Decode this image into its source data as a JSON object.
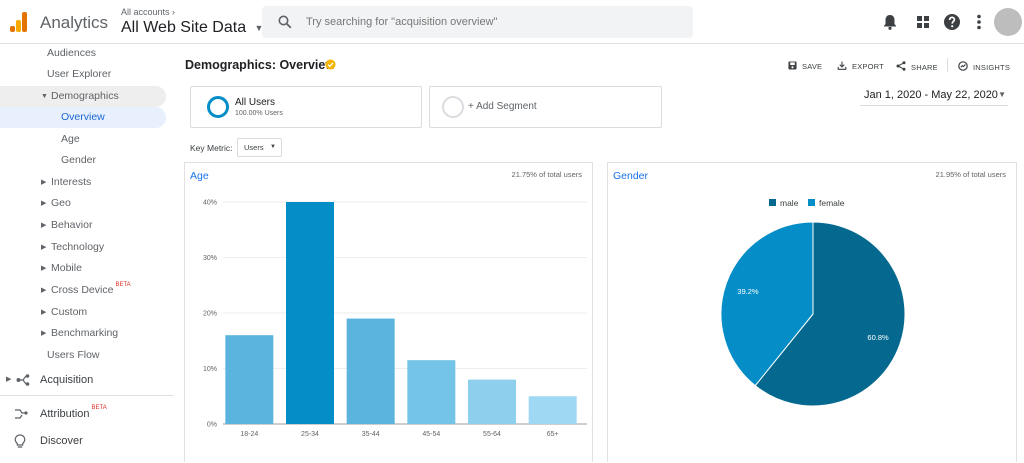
{
  "header": {
    "app_name": "Analytics",
    "account_small": "All accounts",
    "account_chevron": "›",
    "property": "All Web Site Data",
    "property_caret": "▼",
    "search_placeholder": "Try searching for \"acquisition overview\"",
    "icons": [
      "bell-icon",
      "apps-grid-icon",
      "help-icon",
      "more-vert-icon",
      "avatar"
    ]
  },
  "sidebar": {
    "items": [
      {
        "label": "Audiences",
        "arrow": ""
      },
      {
        "label": "User Explorer",
        "arrow": ""
      },
      {
        "label": "Demographics",
        "arrow": "▼"
      },
      {
        "label": "Overview",
        "arrow": ""
      },
      {
        "label": "Age",
        "arrow": ""
      },
      {
        "label": "Gender",
        "arrow": ""
      },
      {
        "label": "Interests",
        "arrow": "▶"
      },
      {
        "label": "Geo",
        "arrow": "▶"
      },
      {
        "label": "Behavior",
        "arrow": "▶"
      },
      {
        "label": "Technology",
        "arrow": "▶"
      },
      {
        "label": "Mobile",
        "arrow": "▶"
      },
      {
        "label": "Cross Device",
        "arrow": "▶",
        "badge": "BETA"
      },
      {
        "label": "Custom",
        "arrow": "▶"
      },
      {
        "label": "Benchmarking",
        "arrow": "▶"
      },
      {
        "label": "Users Flow",
        "arrow": ""
      }
    ],
    "acquisition": "Acquisition",
    "attribution": "Attribution",
    "attribution_badge": "BETA",
    "discover": "Discover"
  },
  "page": {
    "title": "Demographics: Overview",
    "actions": {
      "save": "SAVE",
      "export": "EXPORT",
      "share": "SHARE",
      "insights": "INSIGHTS"
    },
    "segments": {
      "all_users": "All Users",
      "all_users_sub": "100.00% Users",
      "add_segment": "+ Add Segment"
    },
    "date_range": "Jan 1, 2020 - May 22, 2020",
    "date_caret": "▼",
    "key_metric_label": "Key Metric:",
    "key_metric_value": "Users",
    "key_metric_caret": "▼"
  },
  "colors": {
    "age_bars": [
      "#5ab4dd",
      "#058dc7",
      "#5ab4dd",
      "#73c4e6",
      "#8dcfed",
      "#9fd8f2"
    ],
    "male": "#05698f",
    "female": "#058dc7",
    "accent_blue": "#1a73e8",
    "verified": "#f4b400"
  },
  "age_panel": {
    "title": "Age",
    "pct_of_total": "21.75% of total users"
  },
  "gender_panel": {
    "title": "Gender",
    "pct_of_total": "21.95% of total users"
  },
  "chart_data": [
    {
      "type": "bar",
      "title": "Age",
      "categories": [
        "18-24",
        "25-34",
        "35-44",
        "45-54",
        "55-64",
        "65+"
      ],
      "values": [
        16,
        40,
        19,
        11.5,
        8,
        5
      ],
      "yticks": [
        "0%",
        "10%",
        "20%",
        "30%",
        "40%"
      ],
      "ylim": [
        0,
        40
      ],
      "grid": true
    },
    {
      "type": "pie",
      "title": "Gender",
      "labels": [
        "male",
        "female"
      ],
      "values": [
        60.8,
        39.2
      ],
      "value_labels": [
        "60.8%",
        "39.2%"
      ],
      "legend": "top-center"
    }
  ]
}
